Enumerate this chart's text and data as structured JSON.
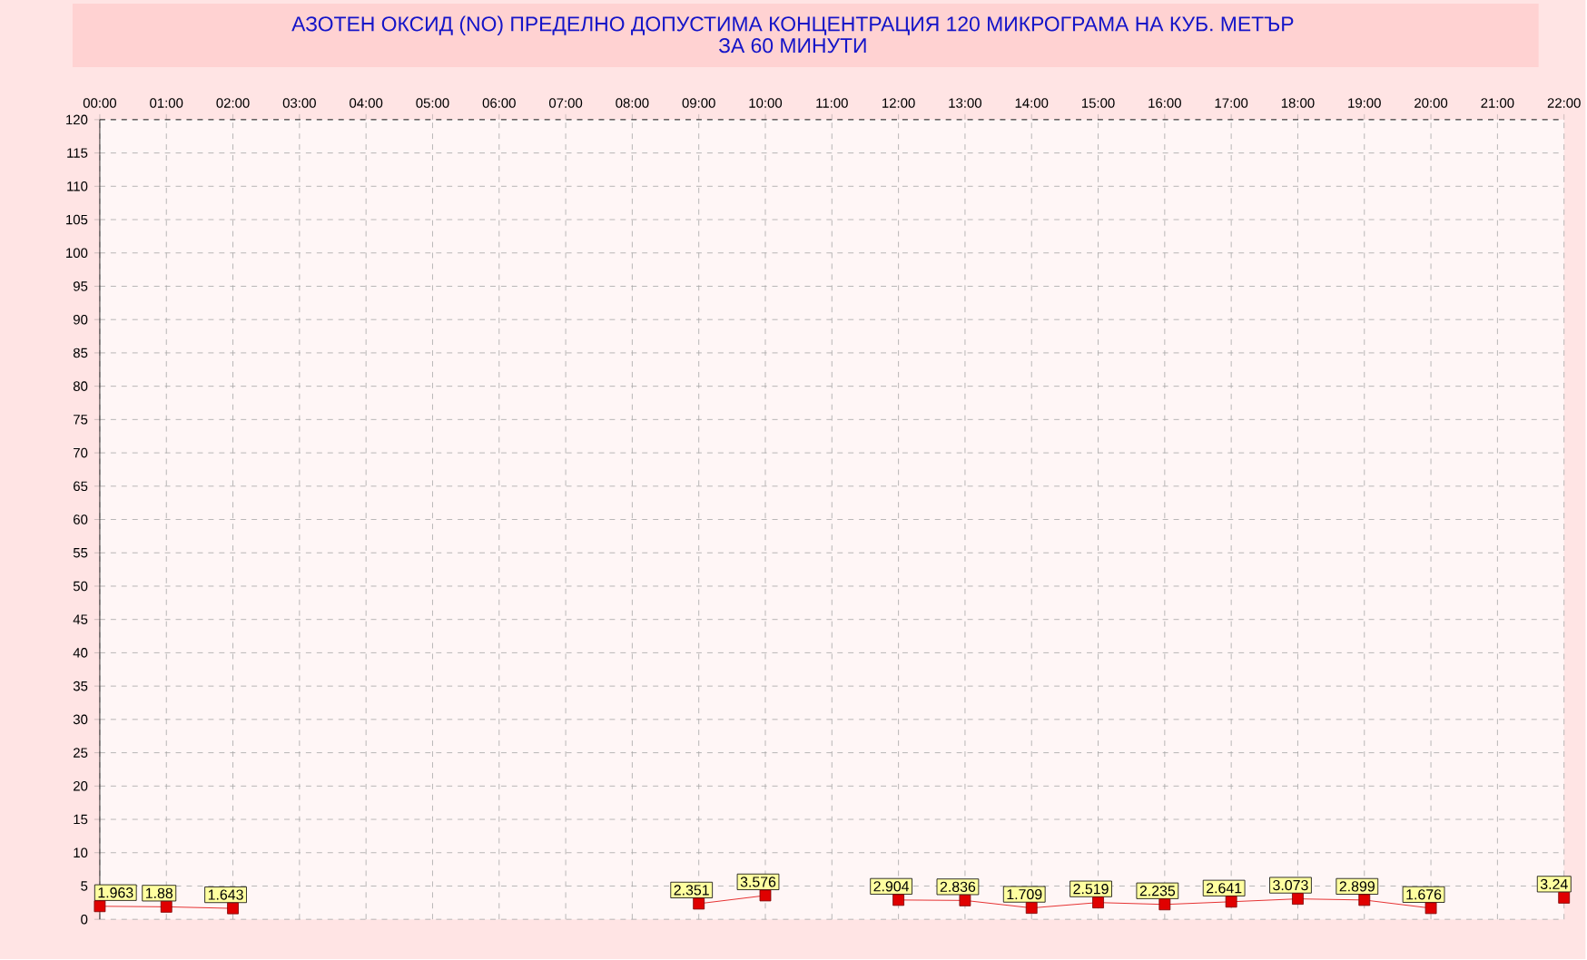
{
  "chart_data": {
    "type": "line",
    "title": "АЗОТЕН ОКСИД   (NO)     ПРЕДЕЛНО ДОПУСТИМА КОНЦЕНТРАЦИЯ 120 МИКРОГРАМА  НА КУБ. МЕТЪР",
    "subtitle": "ЗА 60 МИНУТИ",
    "categories": [
      "00:00",
      "01:00",
      "02:00",
      "03:00",
      "04:00",
      "05:00",
      "06:00",
      "07:00",
      "08:00",
      "09:00",
      "10:00",
      "11:00",
      "12:00",
      "13:00",
      "14:00",
      "15:00",
      "16:00",
      "17:00",
      "18:00",
      "19:00",
      "20:00",
      "21:00",
      "22:00"
    ],
    "values": [
      1.963,
      1.88,
      1.643,
      null,
      null,
      null,
      null,
      null,
      null,
      2.351,
      3.576,
      null,
      2.904,
      2.836,
      1.709,
      2.519,
      2.235,
      2.641,
      3.073,
      2.899,
      1.676,
      null,
      3.24
    ],
    "color": "#e00000",
    "ylim": [
      0,
      120
    ],
    "yticks": [
      0,
      5,
      10,
      15,
      20,
      25,
      30,
      35,
      40,
      45,
      50,
      55,
      60,
      65,
      70,
      75,
      80,
      85,
      90,
      95,
      100,
      105,
      110,
      115,
      120
    ],
    "grid": true,
    "legend": false,
    "marker": "square",
    "line_style": "solid",
    "data_labels": true
  }
}
